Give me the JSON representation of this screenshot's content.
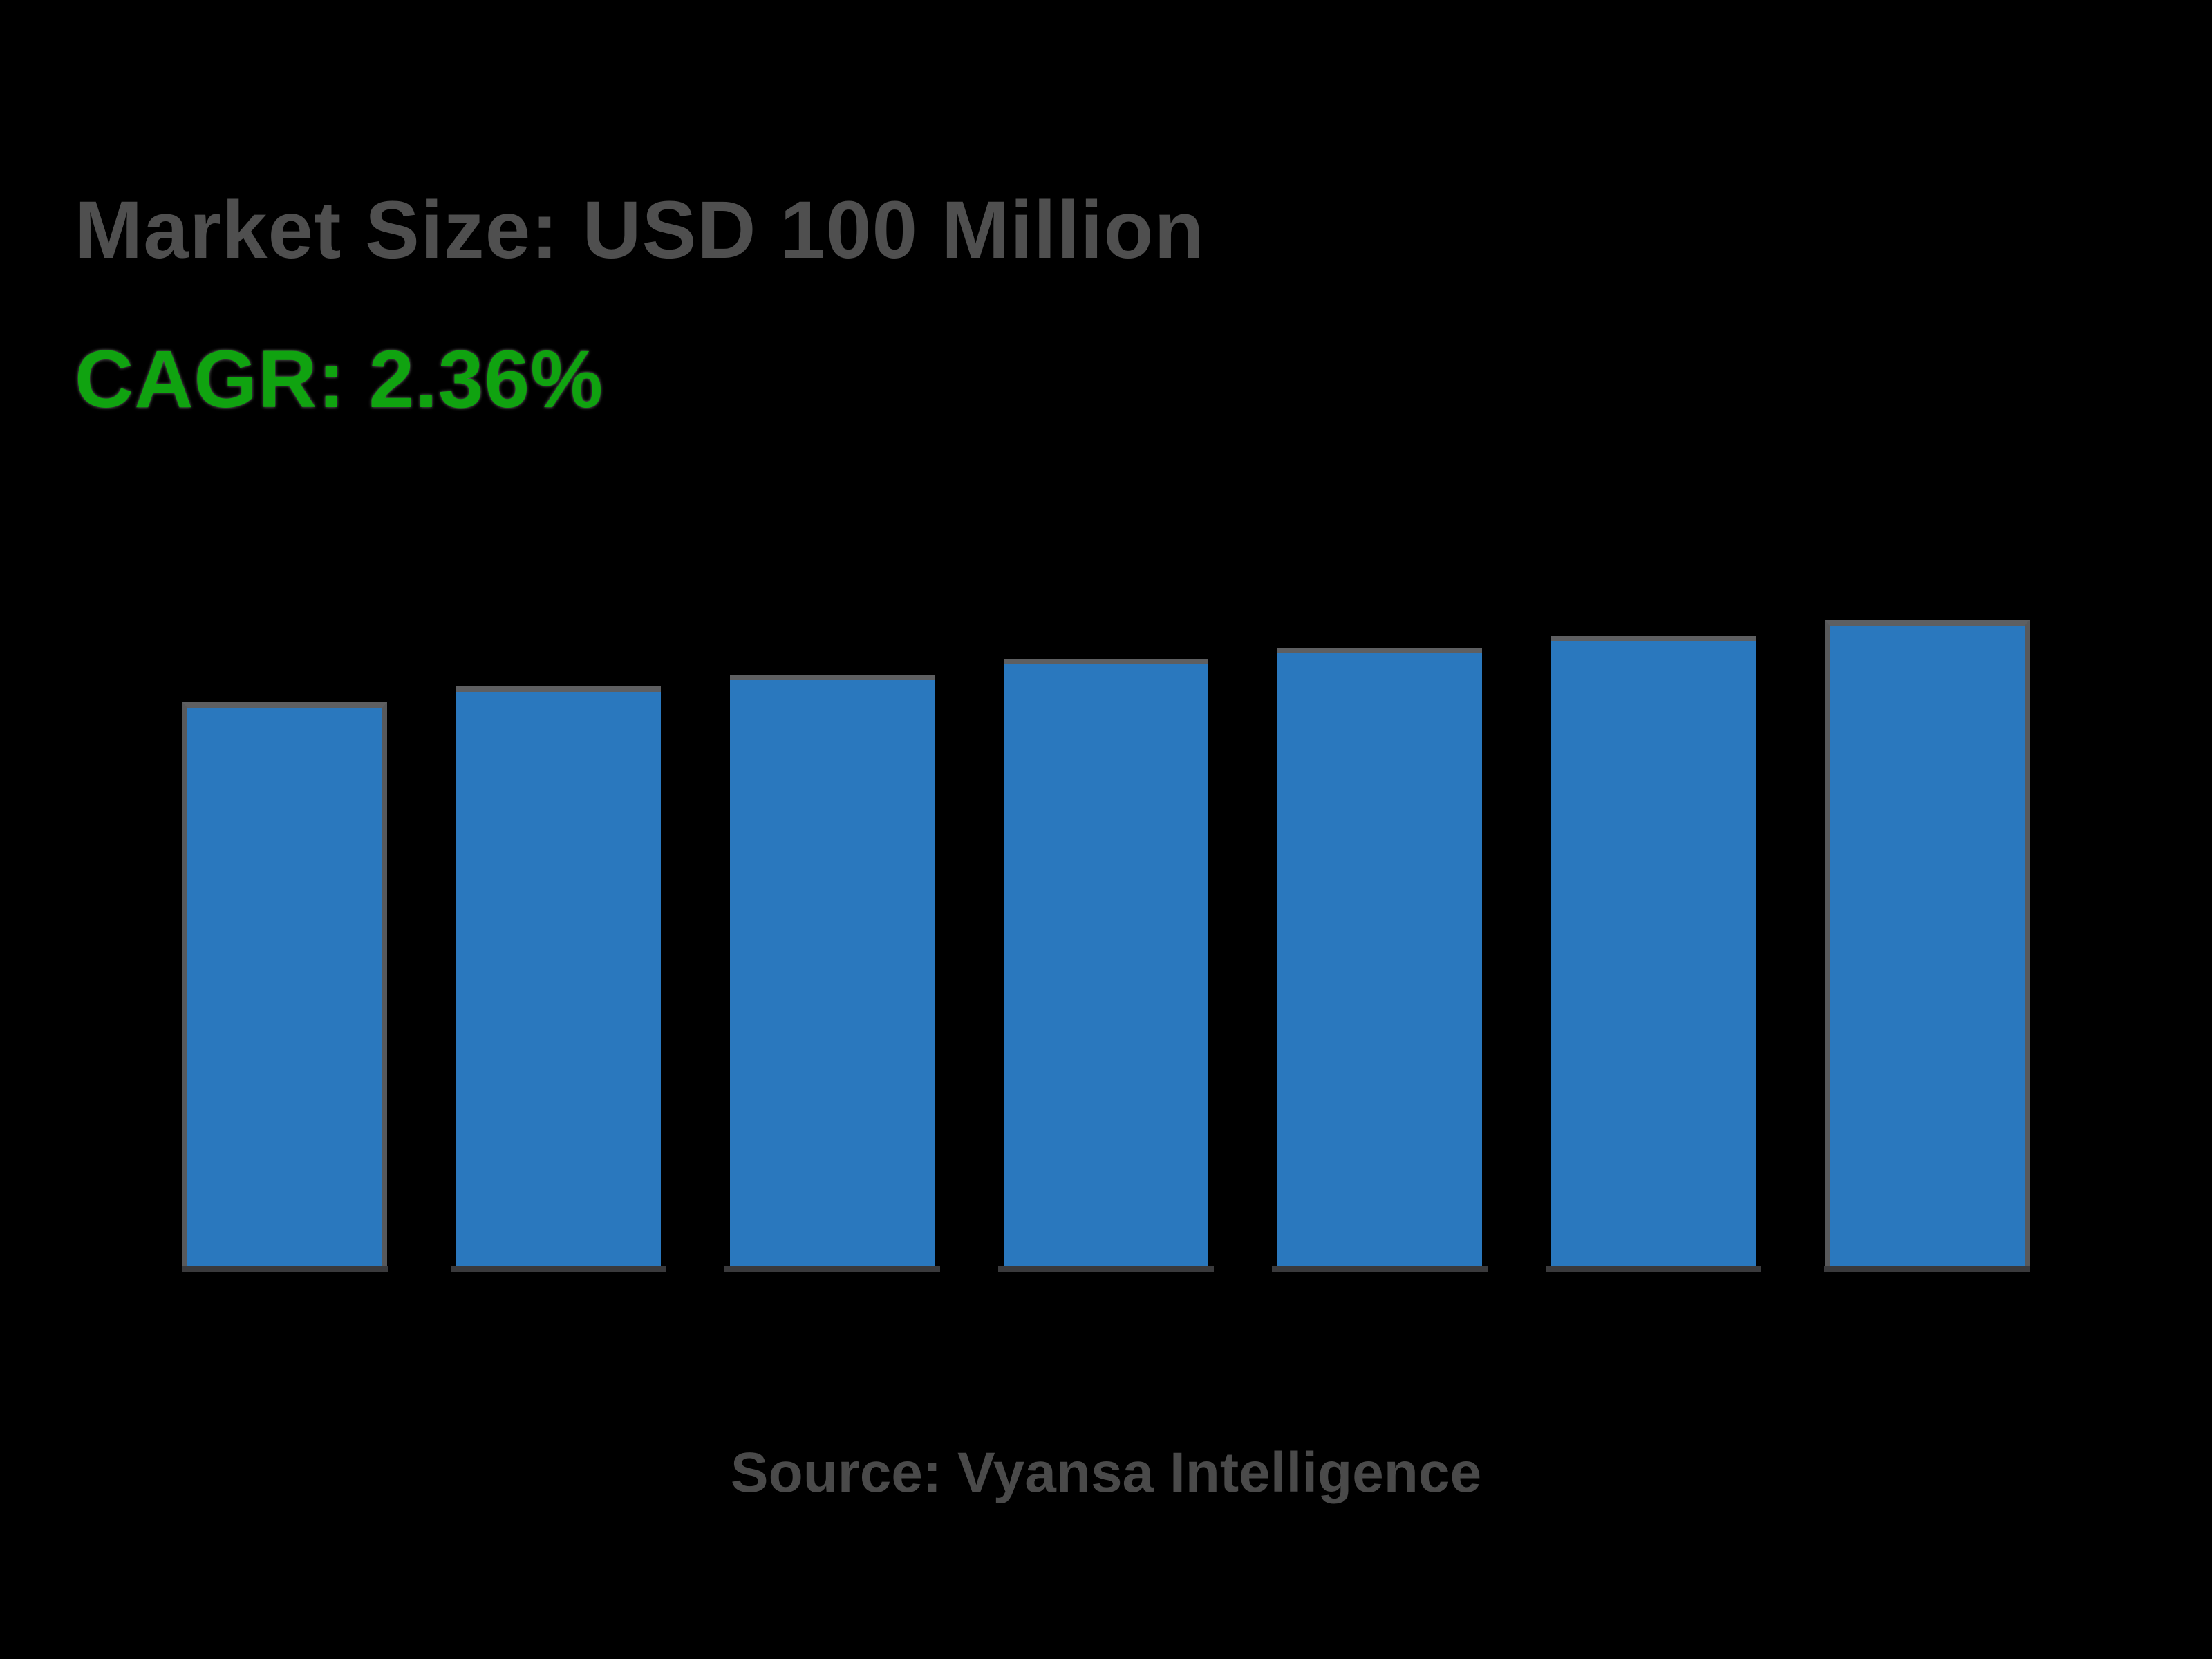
{
  "page": {
    "background": "#000000"
  },
  "header": {
    "title": "Market Size: USD 100 Million",
    "title_color": "#4F4F4F",
    "cagr": "CAGR: 2.36%",
    "cagr_color": "#10A310"
  },
  "footer": {
    "source": "Source: Vyansa Intelligence",
    "source_color": "#4A4A4A"
  },
  "chart_data": {
    "type": "bar",
    "title": "Market Size: USD 100 Million",
    "subtitle": "CAGR: 2.36%",
    "source": "Source: Vyansa Intelligence",
    "num_bars": 7,
    "categories": [
      "",
      "",
      "",
      "",
      "",
      "",
      ""
    ],
    "values": [
      100,
      102.8,
      104.9,
      107.7,
      109.7,
      111.8,
      114.6
    ],
    "values_note": "Chart shows no axes, gridlines, tick labels or data labels; values are relative bar heights estimated from pixels with the first bar normalized to 100 (consistent with CAGR 2.36% over 6 periods).",
    "ylim": [
      0,
      114.6
    ],
    "axes_visible": false,
    "gridlines": false,
    "legend": false,
    "bar_color": "#2A78BE",
    "bar_top_border_color": "#5E5F61",
    "bar_bottom_shadow_color": "#3A3A3C",
    "outlined_bar_indices": [
      0,
      6
    ],
    "outline_color": "#58595B"
  }
}
